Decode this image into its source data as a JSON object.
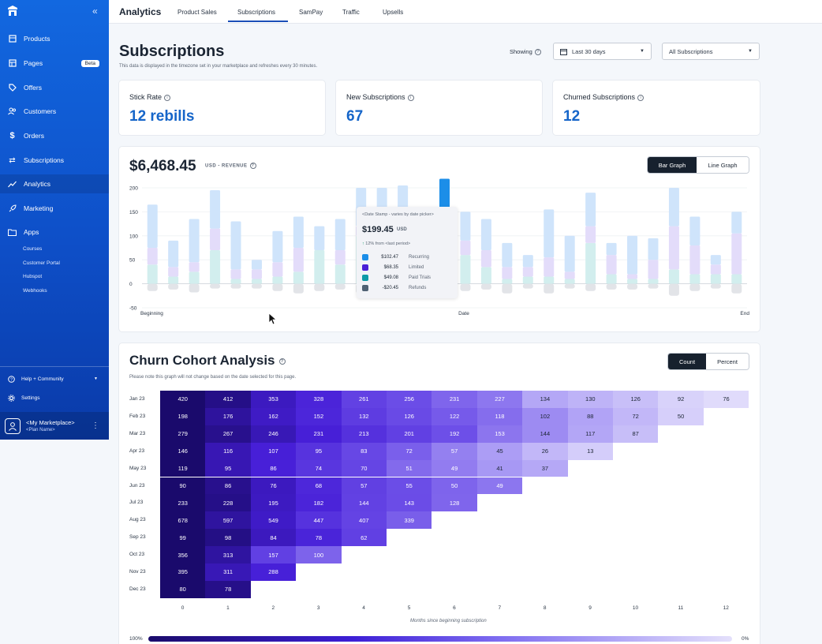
{
  "sidebar": {
    "items": [
      {
        "label": "Products",
        "icon": "box-icon"
      },
      {
        "label": "Pages",
        "icon": "page-icon",
        "badge": "Beta"
      },
      {
        "label": "Offers",
        "icon": "tag-icon"
      },
      {
        "label": "Customers",
        "icon": "users-icon"
      },
      {
        "label": "Orders",
        "icon": "dollar-icon"
      },
      {
        "label": "Subscriptions",
        "icon": "repeat-icon"
      },
      {
        "label": "Analytics",
        "icon": "trend-icon"
      },
      {
        "label": "Marketing",
        "icon": "rocket-icon"
      },
      {
        "label": "Apps",
        "icon": "folder-icon"
      }
    ],
    "apps_sub": [
      "Courses",
      "Customer Portal",
      "Hubspot",
      "Webhooks"
    ],
    "help": "Help + Community",
    "settings": "Settings",
    "account": {
      "name": "<My Marketplace>",
      "plan": "<Plan Name>"
    }
  },
  "topnav": {
    "title": "Analytics",
    "tabs": [
      "Product Sales",
      "Subscriptions",
      "SamPay",
      "Traffic",
      "Upsells"
    ],
    "active_tab": "Subscriptions"
  },
  "page": {
    "title": "Subscriptions",
    "subtitle": "This data is displayed in the timezone set in your marketplace and refreshes every 30 minutes.",
    "showing_label": "Showing",
    "date_range": "Last 30 days",
    "filter": "All Subscriptions"
  },
  "kpis": [
    {
      "label": "Stick Rate",
      "value": "12 rebills"
    },
    {
      "label": "New Subscriptions",
      "value": "67"
    },
    {
      "label": "Churned Subscriptions",
      "value": "12"
    }
  ],
  "revenue": {
    "value": "$6,468.45",
    "unit": "USD - REVENUE",
    "toggle": [
      "Bar Graph",
      "Line Graph"
    ],
    "active_toggle": "Bar Graph",
    "x_labels": [
      "Beginning",
      "Date",
      "End"
    ],
    "tooltip": {
      "header": "<Date Stamp - varies by date picker>",
      "total": "$199.45",
      "total_unit": "USD",
      "change": "12% from <last period>",
      "rows": [
        {
          "value": "$102.47",
          "label": "Recurring",
          "color": "#1c8ee8"
        },
        {
          "value": "$68.35",
          "label": "Limited",
          "color": "#4a1fd6"
        },
        {
          "value": "$49.08",
          "label": "Paid Trials",
          "color": "#0f9aa7"
        },
        {
          "value": "-$20.45",
          "label": "Refunds",
          "color": "#4f6173"
        }
      ]
    }
  },
  "chart_data": {
    "type": "bar",
    "stacked": true,
    "ylim": [
      -50,
      200
    ],
    "yticks": [
      200,
      150,
      100,
      50,
      0,
      -50
    ],
    "series_colors": {
      "Recurring": "#cfe4fb",
      "Limited": "#e3dcfa",
      "Paid Trials": "#d2eeee",
      "Refunds": "#e2e4e8"
    },
    "bars": [
      {
        "recurring": 90,
        "limited": 35,
        "trials": 40,
        "refunds": -15
      },
      {
        "recurring": 55,
        "limited": 20,
        "trials": 15,
        "refunds": -12
      },
      {
        "recurring": 90,
        "limited": 20,
        "trials": 25,
        "refunds": -18
      },
      {
        "recurring": 80,
        "limited": 45,
        "trials": 70,
        "refunds": -10
      },
      {
        "recurring": 100,
        "limited": 20,
        "trials": 10,
        "refunds": -10
      },
      {
        "recurring": 20,
        "limited": 20,
        "trials": 10,
        "refunds": -10
      },
      {
        "recurring": 65,
        "limited": 30,
        "trials": 15,
        "refunds": -15
      },
      {
        "recurring": 65,
        "limited": 50,
        "trials": 25,
        "refunds": -20
      },
      {
        "recurring": 50,
        "limited": 0,
        "trials": 70,
        "refunds": -15
      },
      {
        "recurring": 65,
        "limited": 30,
        "trials": 40,
        "refunds": -12
      },
      {
        "recurring": 80,
        "limited": 20,
        "trials": 100,
        "refunds": -20
      },
      {
        "recurring": 150,
        "limited": 30,
        "trials": 20,
        "refunds": -25
      },
      {
        "recurring": 140,
        "limited": 50,
        "trials": 15,
        "refunds": -20
      },
      {
        "recurring": 50,
        "limited": 30,
        "trials": 25,
        "refunds": -20
      },
      {
        "recurring": 102,
        "limited": 68,
        "trials": 49,
        "refunds": -20
      },
      {
        "recurring": 60,
        "limited": 30,
        "trials": 60,
        "refunds": -15
      },
      {
        "recurring": 65,
        "limited": 35,
        "trials": 35,
        "refunds": -12
      },
      {
        "recurring": 50,
        "limited": 25,
        "trials": 10,
        "refunds": -20
      },
      {
        "recurring": 25,
        "limited": 20,
        "trials": 15,
        "refunds": -10
      },
      {
        "recurring": 100,
        "limited": 40,
        "trials": 15,
        "refunds": -20
      },
      {
        "recurring": 75,
        "limited": 15,
        "trials": 10,
        "refunds": -10
      },
      {
        "recurring": 70,
        "limited": 35,
        "trials": 85,
        "refunds": -15
      },
      {
        "recurring": 25,
        "limited": 40,
        "trials": 20,
        "refunds": -12
      },
      {
        "recurring": 80,
        "limited": 10,
        "trials": 10,
        "refunds": -12
      },
      {
        "recurring": 45,
        "limited": 40,
        "trials": 10,
        "refunds": -10
      },
      {
        "recurring": 80,
        "limited": 90,
        "trials": 30,
        "refunds": -25
      },
      {
        "recurring": 60,
        "limited": 60,
        "trials": 20,
        "refunds": -15
      },
      {
        "recurring": 20,
        "limited": 20,
        "trials": 20,
        "refunds": -10
      },
      {
        "recurring": 45,
        "limited": 85,
        "trials": 20,
        "refunds": -20
      }
    ]
  },
  "cohort": {
    "title": "Churn Cohort Analysis",
    "note": "Please note this graph will not change based on the date selected for this page.",
    "toggle": [
      "Count",
      "Percent"
    ],
    "active_toggle": "Count",
    "rows": [
      "Jan 23",
      "Feb 23",
      "Mar 23",
      "Apr 23",
      "May 23",
      "Jun 23",
      "Jul 23",
      "Aug 23",
      "Sep 23",
      "Oct 23",
      "Nov 23",
      "Dec 23"
    ],
    "cols": [
      "0",
      "1",
      "2",
      "3",
      "4",
      "5",
      "6",
      "7",
      "8",
      "9",
      "10",
      "11",
      "12"
    ],
    "values": [
      [
        420,
        412,
        353,
        328,
        261,
        256,
        231,
        227,
        134,
        130,
        126,
        92,
        76
      ],
      [
        198,
        176,
        162,
        152,
        132,
        126,
        122,
        118,
        102,
        88,
        72,
        50
      ],
      [
        279,
        267,
        246,
        231,
        213,
        201,
        192,
        153,
        144,
        117,
        87
      ],
      [
        146,
        116,
        107,
        95,
        83,
        72,
        57,
        45,
        26,
        13
      ],
      [
        119,
        95,
        86,
        74,
        70,
        51,
        49,
        41,
        37
      ],
      [
        90,
        86,
        76,
        68,
        57,
        55,
        50,
        49
      ],
      [
        233,
        228,
        195,
        182,
        144,
        143,
        128
      ],
      [
        678,
        597,
        549,
        447,
        407,
        339
      ],
      [
        99,
        98,
        84,
        78,
        62
      ],
      [
        356,
        313,
        157,
        100
      ],
      [
        395,
        311,
        288
      ],
      [
        80,
        78
      ]
    ],
    "x_title": "Months since beginning subscription",
    "legend_min": "100%",
    "legend_max": "0%"
  }
}
